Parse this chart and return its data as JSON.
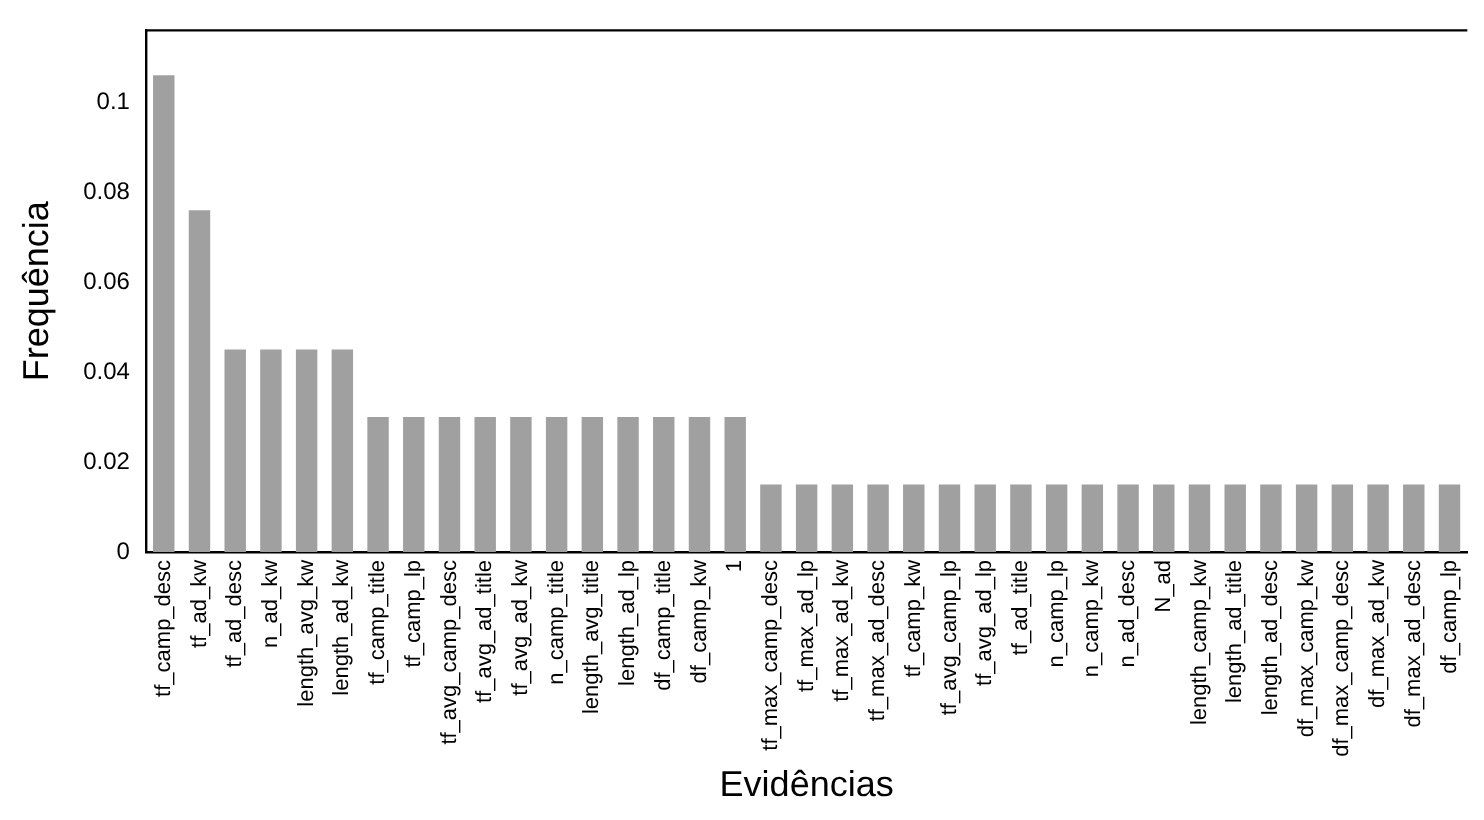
{
  "chart_data": {
    "type": "bar",
    "xlabel": "Evidências",
    "ylabel": "Frequência",
    "categories": [
      "tf_camp_desc",
      "tf_ad_kw",
      "tf_ad_desc",
      "n_ad_kw",
      "length_avg_kw",
      "length_ad_kw",
      "tf_camp_title",
      "tf_camp_lp",
      "tf_avg_camp_desc",
      "tf_avg_ad_title",
      "tf_avg_ad_kw",
      "n_camp_title",
      "length_avg_title",
      "length_ad_lp",
      "df_camp_title",
      "df_camp_kw",
      "1",
      "tf_max_camp_desc",
      "tf_max_ad_lp",
      "tf_max_ad_kw",
      "tf_max_ad_desc",
      "tf_camp_kw",
      "tf_avg_camp_lp",
      "tf_avg_ad_lp",
      "tf_ad_title",
      "n_camp_lp",
      "n_camp_kw",
      "n_ad_desc",
      "N_ad",
      "length_camp_kw",
      "length_ad_title",
      "length_ad_desc",
      "df_max_camp_kw",
      "df_max_camp_desc",
      "df_max_ad_kw",
      "df_max_ad_desc",
      "df_camp_lp"
    ],
    "values": [
      0.106,
      0.076,
      0.045,
      0.045,
      0.045,
      0.045,
      0.03,
      0.03,
      0.03,
      0.03,
      0.03,
      0.03,
      0.03,
      0.03,
      0.03,
      0.03,
      0.03,
      0.015,
      0.015,
      0.015,
      0.015,
      0.015,
      0.015,
      0.015,
      0.015,
      0.015,
      0.015,
      0.015,
      0.015,
      0.015,
      0.015,
      0.015,
      0.015,
      0.015,
      0.015,
      0.015,
      0.015
    ],
    "color": "#a0a0a0",
    "ylim": [
      0,
      0.116
    ],
    "yticks": [
      0,
      0.02,
      0.04,
      0.06,
      0.08,
      0.1
    ],
    "grid": false,
    "legend": false
  }
}
